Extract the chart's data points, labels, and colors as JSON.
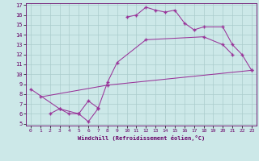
{
  "xlabel": "Windchill (Refroidissement éolien,°C)",
  "bg_color": "#cce8e8",
  "line_color": "#993399",
  "grid_color": "#aacccc",
  "xlim": [
    -0.5,
    23.5
  ],
  "ylim": [
    4.8,
    17.2
  ],
  "xticks": [
    0,
    1,
    2,
    3,
    4,
    5,
    6,
    7,
    8,
    9,
    10,
    11,
    12,
    13,
    14,
    15,
    16,
    17,
    18,
    19,
    20,
    21,
    22,
    23
  ],
  "yticks": [
    5,
    6,
    7,
    8,
    9,
    10,
    11,
    12,
    13,
    14,
    15,
    16,
    17
  ],
  "line1_x": [
    1,
    8,
    23
  ],
  "line1_y": [
    7.7,
    8.9,
    10.4
  ],
  "line2_x": [
    2,
    3,
    4,
    5,
    6,
    7
  ],
  "line2_y": [
    6.0,
    6.5,
    6.0,
    6.0,
    7.3,
    6.6
  ],
  "line3_x": [
    0,
    3,
    5,
    6,
    7,
    8,
    9,
    12,
    18,
    20,
    21
  ],
  "line3_y": [
    8.5,
    6.5,
    6.0,
    5.2,
    6.5,
    9.2,
    11.2,
    13.5,
    13.8,
    13.0,
    12.0
  ],
  "line4_x": [
    10,
    11,
    12,
    13,
    14,
    15,
    16,
    17,
    18,
    20,
    21,
    22,
    23
  ],
  "line4_y": [
    15.8,
    16.0,
    16.8,
    16.5,
    16.3,
    16.5,
    15.2,
    14.5,
    14.8,
    14.8,
    13.0,
    12.0,
    10.4
  ]
}
